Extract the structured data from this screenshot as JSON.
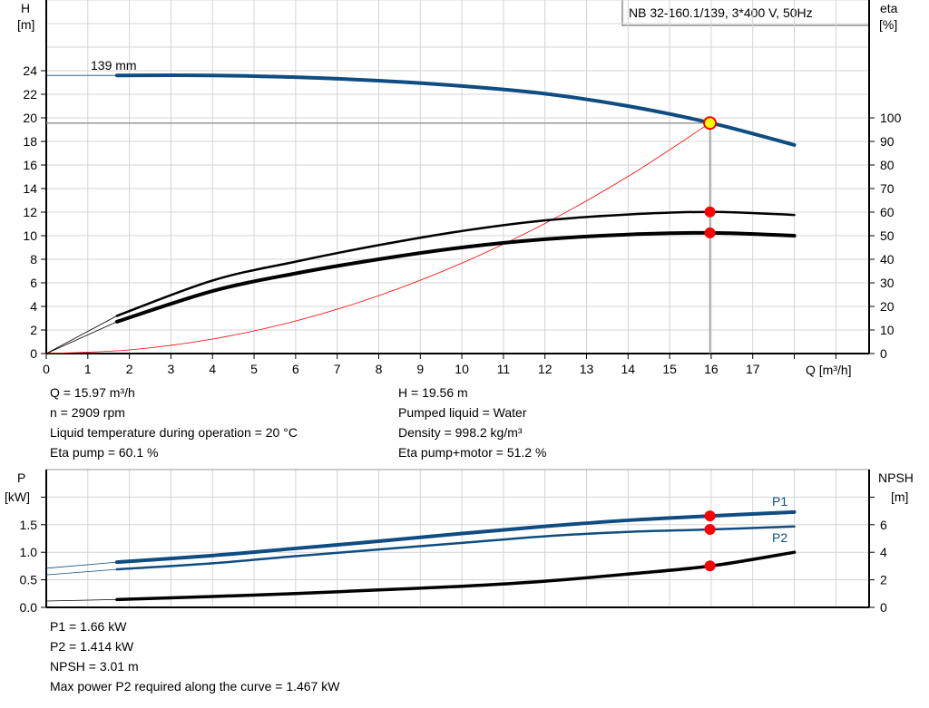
{
  "title_box": "NB 32-160.1/139, 3*400 V, 50Hz",
  "colors": {
    "curve_blue": "#0f4c81",
    "system_red": "#ff0000",
    "marker_red": "#ff0000",
    "duty_point_yellow": "#ffff00",
    "grid": "#d4d4d4"
  },
  "chart_data": [
    {
      "type": "line",
      "xlabel": "Q [m³/h]",
      "ylabel_left": [
        "H",
        "[m]"
      ],
      "ylabel_right": [
        "eta",
        "[%]"
      ],
      "xlim": [
        0,
        19.8
      ],
      "ylim_left": [
        0,
        30
      ],
      "ylim_right": [
        0,
        150
      ],
      "x_ticks": [
        0,
        1,
        2,
        3,
        4,
        5,
        6,
        7,
        8,
        9,
        10,
        11,
        12,
        13,
        14,
        15,
        16,
        17
      ],
      "x_ticks_unlabeled": [
        18,
        19
      ],
      "y_ticks_left": [
        0,
        2,
        4,
        6,
        8,
        10,
        12,
        14,
        16,
        18,
        20,
        22,
        24
      ],
      "y_ticks_right": [
        0,
        10,
        20,
        30,
        40,
        50,
        60,
        70,
        80,
        90,
        100
      ],
      "grid": true,
      "curve_label": "139 mm",
      "series": [
        {
          "axis": "left",
          "role": "head",
          "color": "#0f4c81",
          "x": [
            0,
            1.7,
            4,
            6,
            8,
            10,
            12,
            14,
            16,
            18
          ],
          "y": [
            23.6,
            23.6,
            23.6,
            23.45,
            23.15,
            22.7,
            22.05,
            21.0,
            19.56,
            17.7
          ]
        },
        {
          "axis": "right",
          "role": "eta-pump",
          "color": "#000000",
          "x": [
            0,
            1.7,
            4,
            6,
            8,
            10,
            12,
            14,
            16,
            18
          ],
          "y": [
            0,
            16,
            31,
            39,
            46,
            52,
            56.5,
            59,
            60.1,
            58.8
          ]
        },
        {
          "axis": "right",
          "role": "eta-pump-motor",
          "color": "#000000",
          "x": [
            0,
            1.7,
            4,
            6,
            8,
            10,
            12,
            14,
            16,
            18
          ],
          "y": [
            0,
            13.5,
            26.5,
            34,
            40,
            45,
            48.5,
            50.5,
            51.2,
            50
          ]
        },
        {
          "axis": "left",
          "role": "system-curve",
          "color": "#ff0000",
          "x": [
            0,
            2,
            4,
            6,
            8,
            10,
            12,
            14,
            15.97
          ],
          "y": [
            0,
            0.31,
            1.23,
            2.76,
            4.91,
            7.67,
            11.04,
            15.03,
            19.56
          ]
        }
      ],
      "duty_point": {
        "Q": 15.97,
        "H": 19.56,
        "eta_pump": 60.1,
        "eta_pump_motor": 51.2
      }
    },
    {
      "type": "line",
      "ylabel_left": [
        "P",
        "[kW]"
      ],
      "ylabel_right": [
        "NPSH",
        "[m]"
      ],
      "xlim": [
        0,
        19.8
      ],
      "ylim_left": [
        0,
        2.5
      ],
      "ylim_right": [
        0,
        10
      ],
      "y_ticks_left": [
        "0.0",
        "0.5",
        "1.0",
        "1.5"
      ],
      "y_ticks_right": [
        0,
        2,
        4,
        6
      ],
      "grid": true,
      "series": [
        {
          "name": "P1",
          "axis": "left",
          "color": "#0f4c81",
          "x": [
            0,
            1.7,
            4,
            6,
            8,
            10,
            12,
            14,
            16,
            18
          ],
          "y": [
            0.71,
            0.82,
            0.94,
            1.07,
            1.2,
            1.34,
            1.47,
            1.58,
            1.66,
            1.73
          ]
        },
        {
          "name": "P2",
          "axis": "left",
          "color": "#0f4c81",
          "x": [
            0,
            1.7,
            4,
            6,
            8,
            10,
            12,
            14,
            16,
            18
          ],
          "y": [
            0.59,
            0.69,
            0.8,
            0.93,
            1.05,
            1.17,
            1.29,
            1.37,
            1.414,
            1.467
          ]
        },
        {
          "axis": "right",
          "role": "npsh",
          "color": "#000000",
          "x": [
            0,
            1.7,
            4,
            6,
            8,
            10,
            12,
            14,
            16,
            18
          ],
          "y": [
            0.46,
            0.57,
            0.79,
            1.0,
            1.27,
            1.53,
            1.9,
            2.42,
            3.01,
            4.0
          ]
        }
      ],
      "duty_point": {
        "Q": 15.97,
        "P1": 1.66,
        "P2": 1.414,
        "NPSH": 3.01
      }
    }
  ],
  "info_top": {
    "left": [
      "Q = 15.97 m³/h",
      "n = 2909 rpm",
      "Liquid temperature during operation = 20 °C",
      "Eta pump = 60.1 %"
    ],
    "right": [
      "H = 19.56 m",
      "Pumped liquid = Water",
      "Density = 998.2 kg/m³",
      "Eta pump+motor = 51.2 %"
    ]
  },
  "info_bottom": [
    "P1 = 1.66 kW",
    "P2 = 1.414 kW",
    "NPSH = 3.01 m",
    "Max power P2 required along the curve = 1.467 kW"
  ]
}
